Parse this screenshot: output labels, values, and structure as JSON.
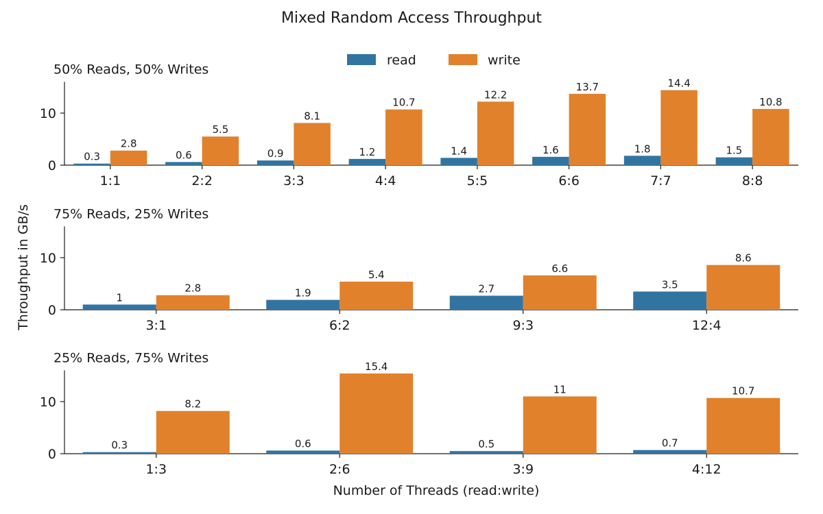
{
  "title": "Mixed Random Access Throughput",
  "legend": {
    "placement": "top-center",
    "items": [
      {
        "label": "read",
        "color": "#3274a1"
      },
      {
        "label": "write",
        "color": "#e1812c"
      }
    ]
  },
  "axes": {
    "ylabel": "Throughput in GB/s",
    "xlabel": "Number of Threads (read:write)"
  },
  "chart_data": [
    {
      "type": "bar",
      "title": "50% Reads, 50% Writes",
      "categories": [
        "1:1",
        "2:2",
        "3:3",
        "4:4",
        "5:5",
        "6:6",
        "7:7",
        "8:8"
      ],
      "series": [
        {
          "name": "read",
          "values": [
            0.3,
            0.6,
            0.9,
            1.2,
            1.4,
            1.6,
            1.8,
            1.5
          ],
          "labels": [
            "0.3",
            "0.6",
            "0.9",
            "1.2",
            "1.4",
            "1.6",
            "1.8",
            "1.5"
          ]
        },
        {
          "name": "write",
          "values": [
            2.8,
            5.5,
            8.1,
            10.7,
            12.2,
            13.7,
            14.4,
            10.8
          ],
          "labels": [
            "2.8",
            "5.5",
            "8.1",
            "10.7",
            "12.2",
            "13.7",
            "14.4",
            "10.8"
          ]
        }
      ],
      "ylim": [
        0,
        16
      ],
      "yticks": [
        0,
        10
      ],
      "grid": false
    },
    {
      "type": "bar",
      "title": "75% Reads, 25% Writes",
      "categories": [
        "3:1",
        "6:2",
        "9:3",
        "12:4"
      ],
      "series": [
        {
          "name": "read",
          "values": [
            1,
            1.9,
            2.7,
            3.5
          ],
          "labels": [
            "1",
            "1.9",
            "2.7",
            "3.5"
          ]
        },
        {
          "name": "write",
          "values": [
            2.8,
            5.4,
            6.6,
            8.6
          ],
          "labels": [
            "2.8",
            "5.4",
            "6.6",
            "8.6"
          ]
        }
      ],
      "ylim": [
        0,
        16
      ],
      "yticks": [
        0,
        10
      ],
      "grid": false
    },
    {
      "type": "bar",
      "title": "25% Reads, 75% Writes",
      "categories": [
        "1:3",
        "2:6",
        "3:9",
        "4:12"
      ],
      "series": [
        {
          "name": "read",
          "values": [
            0.3,
            0.6,
            0.5,
            0.7
          ],
          "labels": [
            "0.3",
            "0.6",
            "0.5",
            "0.7"
          ]
        },
        {
          "name": "write",
          "values": [
            8.2,
            15.4,
            11,
            10.7
          ],
          "labels": [
            "8.2",
            "15.4",
            "11",
            "10.7"
          ]
        }
      ],
      "ylim": [
        0,
        16
      ],
      "yticks": [
        0,
        10
      ],
      "grid": false
    }
  ]
}
